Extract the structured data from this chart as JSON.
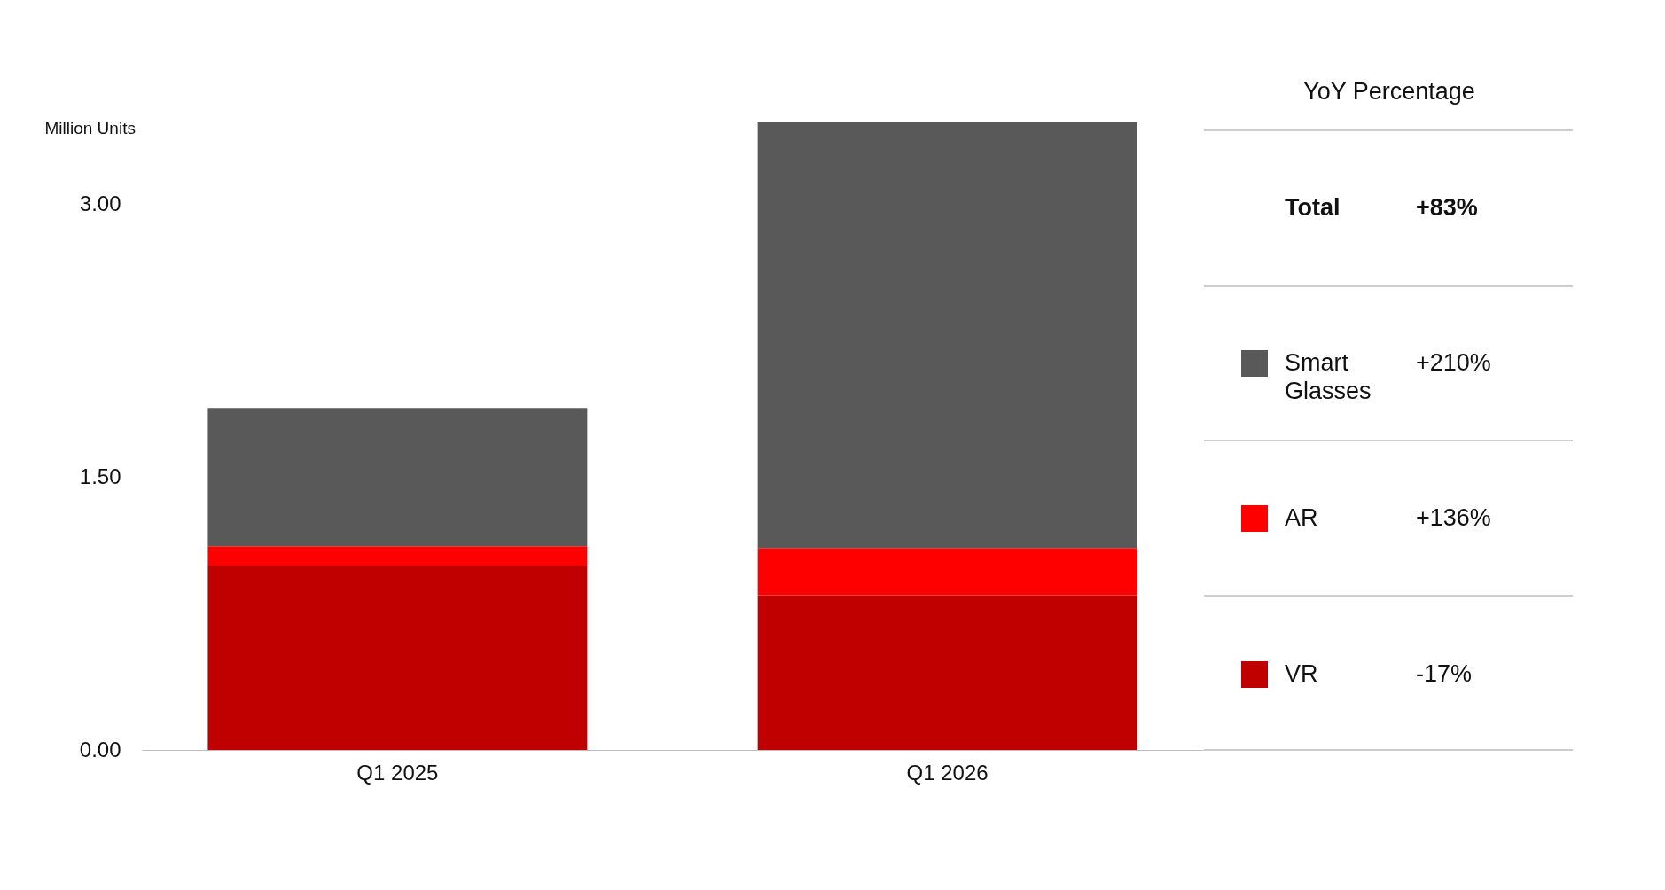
{
  "chart_data": {
    "type": "bar",
    "stacked": true,
    "ylabel": "Million Units",
    "categories": [
      "Q1 2025",
      "Q1 2026"
    ],
    "series": [
      {
        "name": "VR",
        "color": "#c00000",
        "values": [
          1.01,
          0.85
        ]
      },
      {
        "name": "AR",
        "color": "#ff0000",
        "values": [
          0.11,
          0.26
        ]
      },
      {
        "name": "Smart Glasses",
        "color": "#595959",
        "values": [
          0.76,
          2.34
        ]
      }
    ],
    "ylim": [
      0,
      3.45
    ],
    "yticks": [
      {
        "value": 0,
        "label": "0.00"
      },
      {
        "value": 1.5,
        "label": "1.50"
      },
      {
        "value": 3,
        "label": "3.00"
      }
    ],
    "grid": false,
    "legend": "right",
    "annotations": [
      "YoY Percentage",
      "Total",
      "+83%",
      "+210%",
      "+136%",
      "-17%"
    ]
  }
}
